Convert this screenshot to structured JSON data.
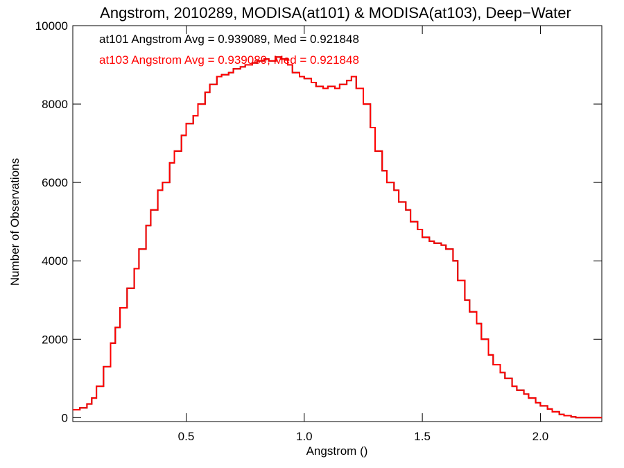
{
  "chart_data": {
    "type": "line",
    "title": "Angstrom, 2010289, MODISA(at101) & MODISA(at103), Deep−Water",
    "xlabel": "Angstrom ()",
    "ylabel": "Number of Observations",
    "xlim": [
      0.02,
      2.26
    ],
    "ylim": [
      -100,
      10000
    ],
    "x_ticks": [
      0.5,
      1.0,
      1.5,
      2.0
    ],
    "x_tick_labels": [
      "0.5",
      "1.0",
      "1.5",
      "2.0"
    ],
    "y_ticks": [
      0,
      2000,
      4000,
      6000,
      8000,
      10000
    ],
    "y_tick_labels": [
      "0",
      "2000",
      "4000",
      "6000",
      "8000",
      "10000"
    ],
    "grid": false,
    "step": true,
    "annotations": [
      {
        "text": "at101 Angstrom Avg = 0.939089, Med = 0.921848",
        "color": "#000000"
      },
      {
        "text": "at103 Angstrom Avg = 0.939089, Med = 0.921848",
        "color": "#ff0000"
      }
    ],
    "series": [
      {
        "color": "#000000",
        "x": [
          0.02,
          0.05,
          0.08,
          0.1,
          0.12,
          0.15,
          0.18,
          0.2,
          0.22,
          0.25,
          0.28,
          0.3,
          0.33,
          0.35,
          0.38,
          0.4,
          0.43,
          0.45,
          0.48,
          0.5,
          0.53,
          0.55,
          0.58,
          0.6,
          0.63,
          0.65,
          0.68,
          0.7,
          0.73,
          0.75,
          0.78,
          0.8,
          0.83,
          0.85,
          0.88,
          0.9,
          0.93,
          0.95,
          0.98,
          1.0,
          1.03,
          1.05,
          1.08,
          1.1,
          1.13,
          1.15,
          1.18,
          1.2,
          1.22,
          1.25,
          1.28,
          1.3,
          1.33,
          1.35,
          1.38,
          1.4,
          1.43,
          1.45,
          1.48,
          1.5,
          1.53,
          1.55,
          1.58,
          1.6,
          1.63,
          1.65,
          1.68,
          1.7,
          1.73,
          1.75,
          1.78,
          1.8,
          1.83,
          1.85,
          1.88,
          1.9,
          1.93,
          1.95,
          1.98,
          2.0,
          2.03,
          2.05,
          2.08,
          2.1,
          2.13,
          2.15,
          2.18,
          2.2,
          2.23,
          2.26
        ],
        "values": [
          200,
          250,
          350,
          500,
          800,
          1300,
          1900,
          2300,
          2800,
          3300,
          3800,
          4300,
          4900,
          5300,
          5800,
          6000,
          6500,
          6800,
          7200,
          7500,
          7700,
          8000,
          8300,
          8500,
          8700,
          8750,
          8800,
          8900,
          8950,
          9000,
          9050,
          9100,
          9150,
          9100,
          9200,
          9150,
          9000,
          8800,
          8700,
          8650,
          8550,
          8450,
          8400,
          8450,
          8400,
          8500,
          8600,
          8700,
          8400,
          8000,
          7400,
          6800,
          6300,
          6000,
          5800,
          5500,
          5300,
          5000,
          4800,
          4600,
          4500,
          4450,
          4400,
          4300,
          4000,
          3500,
          3000,
          2700,
          2400,
          2000,
          1600,
          1350,
          1150,
          1000,
          800,
          700,
          600,
          500,
          380,
          300,
          220,
          150,
          80,
          50,
          20,
          0,
          0,
          0,
          0,
          0
        ]
      },
      {
        "color": "#ff0000",
        "x": [
          0.02,
          0.05,
          0.08,
          0.1,
          0.12,
          0.15,
          0.18,
          0.2,
          0.22,
          0.25,
          0.28,
          0.3,
          0.33,
          0.35,
          0.38,
          0.4,
          0.43,
          0.45,
          0.48,
          0.5,
          0.53,
          0.55,
          0.58,
          0.6,
          0.63,
          0.65,
          0.68,
          0.7,
          0.73,
          0.75,
          0.78,
          0.8,
          0.83,
          0.85,
          0.88,
          0.9,
          0.93,
          0.95,
          0.98,
          1.0,
          1.03,
          1.05,
          1.08,
          1.1,
          1.13,
          1.15,
          1.18,
          1.2,
          1.22,
          1.25,
          1.28,
          1.3,
          1.33,
          1.35,
          1.38,
          1.4,
          1.43,
          1.45,
          1.48,
          1.5,
          1.53,
          1.55,
          1.58,
          1.6,
          1.63,
          1.65,
          1.68,
          1.7,
          1.73,
          1.75,
          1.78,
          1.8,
          1.83,
          1.85,
          1.88,
          1.9,
          1.93,
          1.95,
          1.98,
          2.0,
          2.03,
          2.05,
          2.08,
          2.1,
          2.13,
          2.15,
          2.18,
          2.2,
          2.23,
          2.26
        ],
        "values": [
          200,
          250,
          350,
          500,
          800,
          1300,
          1900,
          2300,
          2800,
          3300,
          3800,
          4300,
          4900,
          5300,
          5800,
          6000,
          6500,
          6800,
          7200,
          7500,
          7700,
          8000,
          8300,
          8500,
          8700,
          8750,
          8800,
          8900,
          8950,
          9000,
          9050,
          9100,
          9150,
          9100,
          9200,
          9150,
          9000,
          8800,
          8700,
          8650,
          8550,
          8450,
          8400,
          8450,
          8400,
          8500,
          8600,
          8700,
          8400,
          8000,
          7400,
          6800,
          6300,
          6000,
          5800,
          5500,
          5300,
          5000,
          4800,
          4600,
          4500,
          4450,
          4400,
          4300,
          4000,
          3500,
          3000,
          2700,
          2400,
          2000,
          1600,
          1350,
          1150,
          1000,
          800,
          700,
          600,
          500,
          380,
          300,
          220,
          150,
          80,
          50,
          20,
          0,
          0,
          0,
          0,
          0
        ]
      }
    ]
  }
}
